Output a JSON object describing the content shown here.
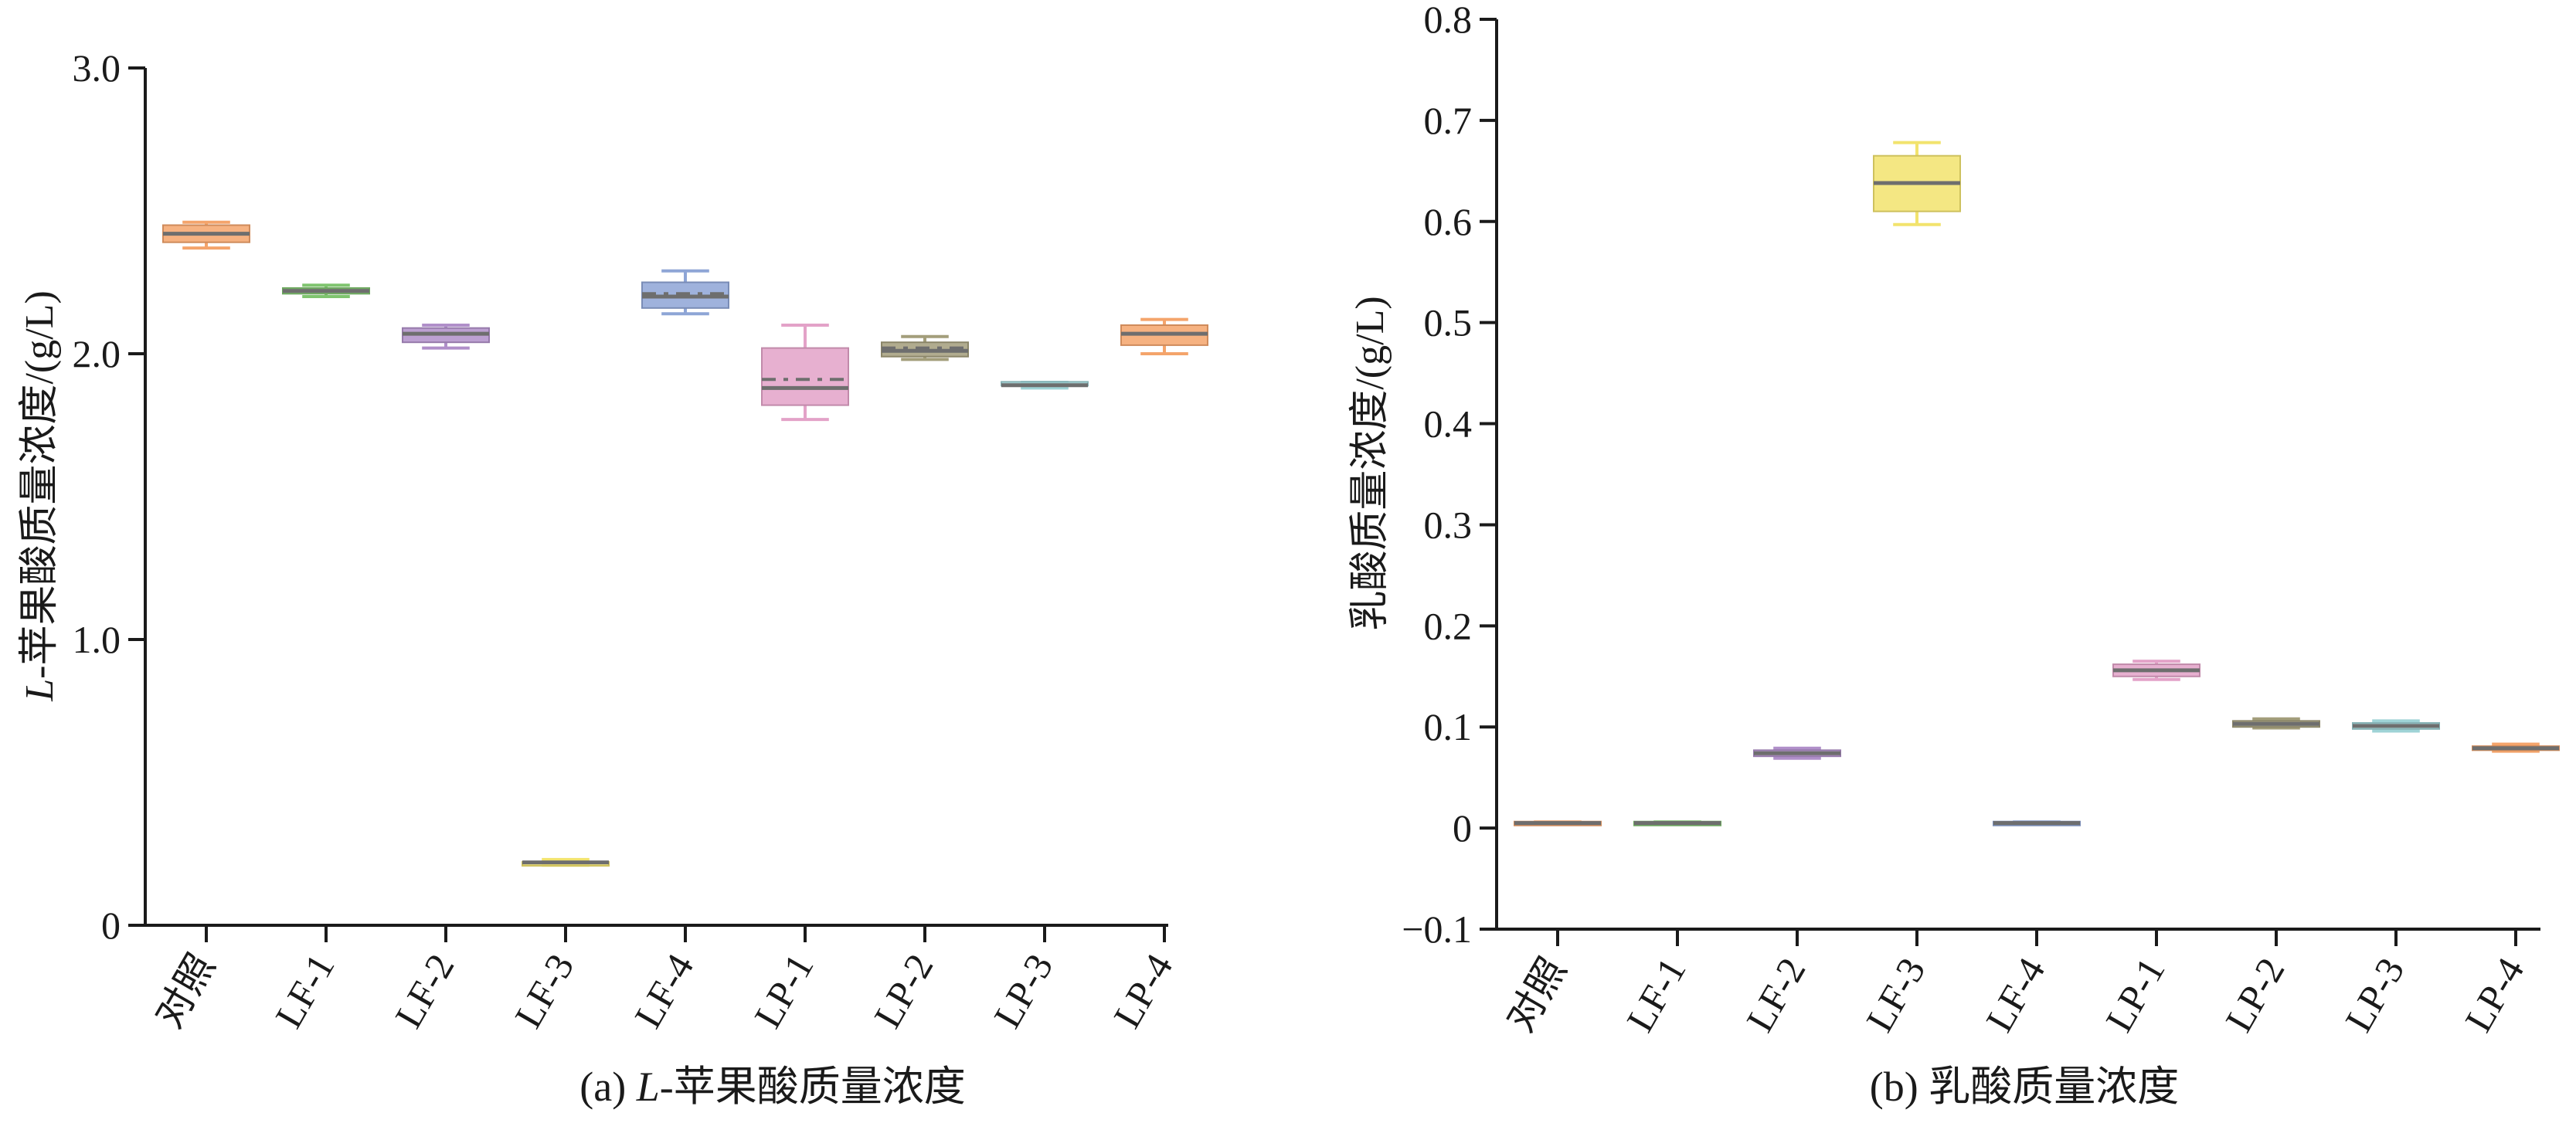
{
  "chart_data": [
    {
      "type": "box",
      "caption_prefix": "(a) ",
      "caption_italic": "L",
      "caption_rest": "-苹果酸质量浓度",
      "ylabel_italic": "L",
      "ylabel_rest": "-苹果酸质量浓度/(g/L)",
      "ylim": [
        0,
        3.0
      ],
      "yticks": [
        0,
        1.0,
        2.0,
        3.0
      ],
      "ytick_labels": [
        "0",
        "1.0",
        "2.0",
        "3.0"
      ],
      "categories": [
        "对照",
        "LF-1",
        "LF-2",
        "LF-3",
        "LF-4",
        "LP-1",
        "LP-2",
        "LP-3",
        "LP-4"
      ],
      "colors": [
        "#f4a46b",
        "#7fc46f",
        "#b08fc9",
        "#f2e36d",
        "#8ea5d6",
        "#e3a2c8",
        "#a39e7b",
        "#9fd3d6",
        "#f4a46b"
      ],
      "boxes": [
        {
          "min": 2.37,
          "q1": 2.39,
          "median": 2.42,
          "mean": 2.42,
          "q3": 2.45,
          "max": 2.46
        },
        {
          "min": 2.2,
          "q1": 2.21,
          "median": 2.22,
          "mean": 2.22,
          "q3": 2.23,
          "max": 2.24
        },
        {
          "min": 2.02,
          "q1": 2.04,
          "median": 2.07,
          "mean": 2.07,
          "q3": 2.09,
          "max": 2.1
        },
        {
          "min": 0.21,
          "q1": 0.21,
          "median": 0.22,
          "mean": 0.22,
          "q3": 0.22,
          "max": 0.23
        },
        {
          "min": 2.14,
          "q1": 2.16,
          "median": 2.2,
          "mean": 2.21,
          "q3": 2.25,
          "max": 2.29
        },
        {
          "min": 1.77,
          "q1": 1.82,
          "median": 1.88,
          "mean": 1.91,
          "q3": 2.02,
          "max": 2.1
        },
        {
          "min": 1.98,
          "q1": 1.99,
          "median": 2.01,
          "mean": 2.02,
          "q3": 2.04,
          "max": 2.06
        },
        {
          "min": 1.88,
          "q1": 1.89,
          "median": 1.89,
          "mean": 1.89,
          "q3": 1.9,
          "max": 1.9
        },
        {
          "min": 2.0,
          "q1": 2.03,
          "median": 2.07,
          "mean": 2.07,
          "q3": 2.1,
          "max": 2.12
        }
      ]
    },
    {
      "type": "box",
      "caption_prefix": "(b) ",
      "caption_italic": "",
      "caption_rest": "乳酸质量浓度",
      "ylabel_italic": "",
      "ylabel_rest": "乳酸质量浓度/(g/L)",
      "ylim": [
        -0.1,
        0.8
      ],
      "yticks": [
        -0.1,
        0,
        0.1,
        0.2,
        0.3,
        0.4,
        0.5,
        0.6,
        0.7,
        0.8
      ],
      "ytick_labels": [
        "−0.1",
        "0",
        "0.1",
        "0.2",
        "0.3",
        "0.4",
        "0.5",
        "0.6",
        "0.7",
        "0.8"
      ],
      "categories": [
        "对照",
        "LF-1",
        "LF-2",
        "LF-3",
        "LF-4",
        "LP-1",
        "LP-2",
        "LP-3",
        "LP-4"
      ],
      "colors": [
        "#f4a46b",
        "#7fc46f",
        "#b08fc9",
        "#f2e36d",
        "#8ea5d6",
        "#e3a2c8",
        "#a39e7b",
        "#9fd3d6",
        "#f4a46b"
      ],
      "boxes": [
        {
          "min": 0.004,
          "q1": 0.004,
          "median": 0.005,
          "mean": 0.005,
          "q3": 0.005,
          "max": 0.006
        },
        {
          "min": 0.004,
          "q1": 0.004,
          "median": 0.005,
          "mean": 0.005,
          "q3": 0.005,
          "max": 0.006
        },
        {
          "min": 0.069,
          "q1": 0.071,
          "median": 0.074,
          "mean": 0.074,
          "q3": 0.077,
          "max": 0.079
        },
        {
          "min": 0.597,
          "q1": 0.61,
          "median": 0.638,
          "mean": 0.638,
          "q3": 0.665,
          "max": 0.678
        },
        {
          "min": 0.004,
          "q1": 0.004,
          "median": 0.005,
          "mean": 0.005,
          "q3": 0.005,
          "max": 0.006
        },
        {
          "min": 0.147,
          "q1": 0.15,
          "median": 0.156,
          "mean": 0.156,
          "q3": 0.162,
          "max": 0.165
        },
        {
          "min": 0.099,
          "q1": 0.1,
          "median": 0.103,
          "mean": 0.103,
          "q3": 0.106,
          "max": 0.108
        },
        {
          "min": 0.096,
          "q1": 0.098,
          "median": 0.101,
          "mean": 0.101,
          "q3": 0.104,
          "max": 0.106
        },
        {
          "min": 0.076,
          "q1": 0.077,
          "median": 0.079,
          "mean": 0.079,
          "q3": 0.081,
          "max": 0.083
        }
      ]
    }
  ]
}
